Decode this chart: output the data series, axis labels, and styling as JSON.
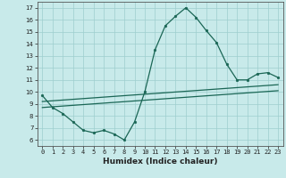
{
  "xlabel": "Humidex (Indice chaleur)",
  "bg_color": "#c8eaea",
  "grid_color": "#9ecece",
  "line_color": "#1a6655",
  "xlim": [
    -0.5,
    23.5
  ],
  "ylim": [
    5.5,
    17.5
  ],
  "yticks": [
    6,
    7,
    8,
    9,
    10,
    11,
    12,
    13,
    14,
    15,
    16,
    17
  ],
  "xticks": [
    0,
    1,
    2,
    3,
    4,
    5,
    6,
    7,
    8,
    9,
    10,
    11,
    12,
    13,
    14,
    15,
    16,
    17,
    18,
    19,
    20,
    21,
    22,
    23
  ],
  "main_curve_x": [
    0,
    1,
    2,
    3,
    4,
    5,
    6,
    7,
    8,
    9,
    10,
    11,
    12,
    13,
    14,
    15,
    16,
    17,
    18,
    19,
    20,
    21,
    22,
    23
  ],
  "main_curve_y": [
    9.7,
    8.7,
    8.2,
    7.5,
    6.8,
    6.6,
    6.8,
    6.5,
    6.0,
    7.5,
    10.0,
    13.5,
    15.5,
    16.3,
    17.0,
    16.2,
    15.1,
    14.1,
    12.3,
    11.0,
    11.0,
    11.5,
    11.6,
    11.2
  ],
  "upper_line_x": [
    0,
    23
  ],
  "upper_line_y": [
    9.2,
    10.6
  ],
  "lower_line_x": [
    0,
    23
  ],
  "lower_line_y": [
    8.7,
    10.1
  ],
  "xlabel_fontsize": 6.5,
  "tick_fontsize": 5.0,
  "linewidth": 0.9,
  "markersize": 2.0
}
